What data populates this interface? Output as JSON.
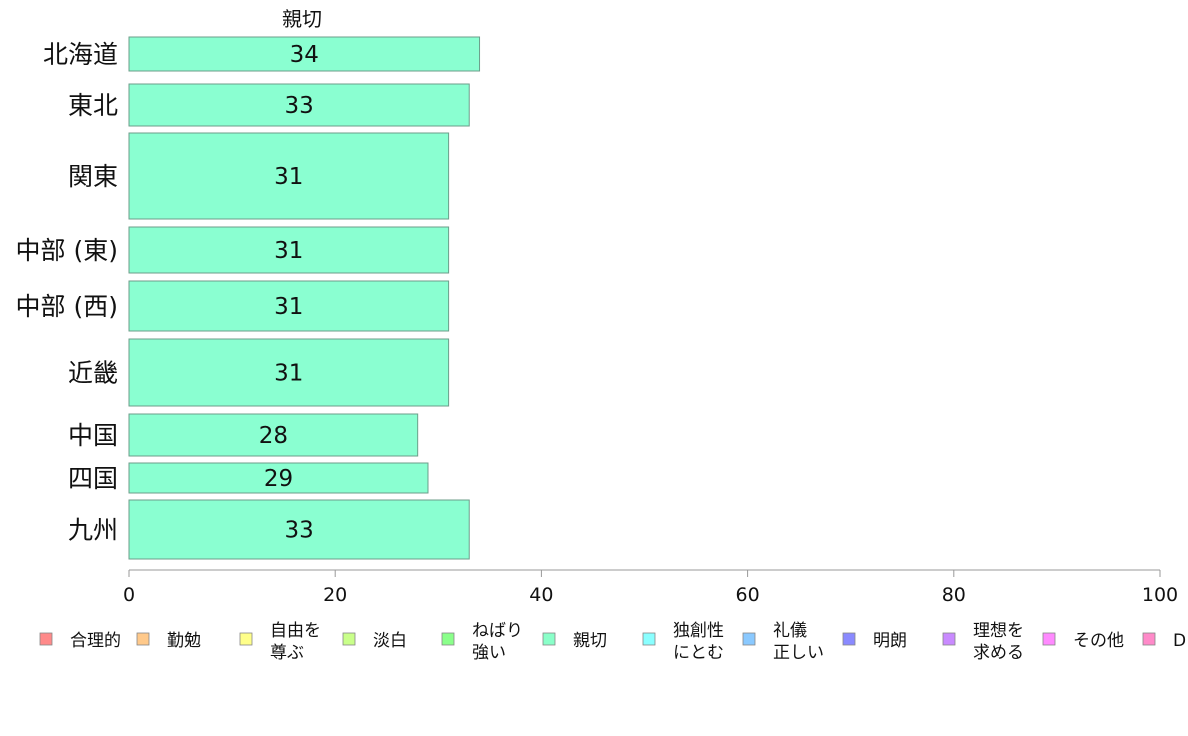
{
  "chart_data": {
    "type": "bar",
    "orientation": "horizontal",
    "title": "親切",
    "categories": [
      "北海道",
      "東北",
      "関東",
      "中部 (東)",
      "中部 (西)",
      "近畿",
      "中国",
      "四国",
      "九州"
    ],
    "series": [
      {
        "name": "親切",
        "values": [
          34,
          33,
          31,
          31,
          31,
          31,
          28,
          29,
          33
        ]
      }
    ],
    "value_labels": [
      "34",
      "33",
      "31",
      "31",
      "31",
      "31",
      "28",
      "29",
      "33"
    ],
    "xlim": [
      0,
      100
    ],
    "xticks": [
      0,
      20,
      40,
      60,
      80,
      100
    ],
    "xtick_labels": [
      "0",
      "20",
      "40",
      "60",
      "80",
      "100"
    ],
    "grid": false,
    "legend": {
      "placement": "bottom",
      "items": [
        {
          "lines": [
            "合理的"
          ],
          "color": "#ff8a8a"
        },
        {
          "lines": [
            "勤勉"
          ],
          "color": "#ffc98a"
        },
        {
          "lines": [
            "自由を",
            "尊ぶ"
          ],
          "color": "#ffff8a"
        },
        {
          "lines": [
            "淡白"
          ],
          "color": "#c9ff8a"
        },
        {
          "lines": [
            "ねばり",
            "強い"
          ],
          "color": "#8aff8a"
        },
        {
          "lines": [
            "親切"
          ],
          "color": "#8affc9"
        },
        {
          "lines": [
            "独創性",
            "にとむ"
          ],
          "color": "#8affff"
        },
        {
          "lines": [
            "礼儀",
            "正しい"
          ],
          "color": "#8ac9ff"
        },
        {
          "lines": [
            "明朗"
          ],
          "color": "#8a8aff"
        },
        {
          "lines": [
            "理想を",
            "求める"
          ],
          "color": "#c98aff"
        },
        {
          "lines": [
            "その他"
          ],
          "color": "#ff8aff"
        },
        {
          "lines": [
            "D"
          ],
          "color": "#ff8ac9"
        }
      ]
    },
    "bar_color": "#8affd1"
  }
}
